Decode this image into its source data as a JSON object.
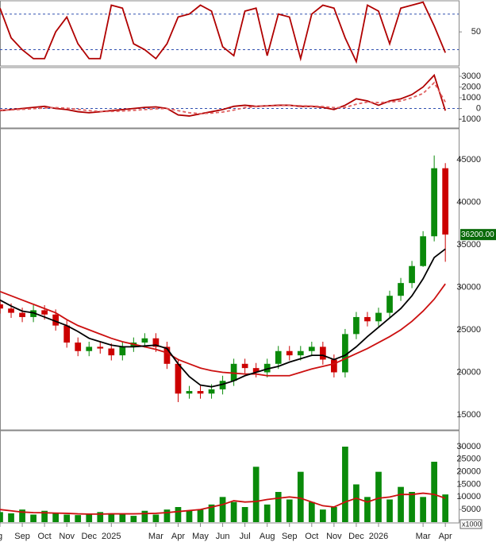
{
  "chart_data": [
    {
      "type": "line",
      "x": [
        0,
        0.5,
        1,
        1.5,
        2,
        2.5,
        3,
        3.5,
        4,
        4.5,
        5,
        5.5,
        6,
        6.5,
        7,
        7.5,
        8,
        8.5,
        9,
        9.5,
        10,
        10.5,
        11,
        11.5,
        12,
        12.5,
        13,
        13.5,
        14,
        14.5,
        15,
        15.5,
        16,
        16.5,
        17,
        17.5,
        18,
        18.5,
        19,
        19.5,
        20
      ],
      "series": [
        {
          "color": "#b00000",
          "style": "solid",
          "values": [
            90,
            40,
            20,
            5,
            5,
            50,
            75,
            30,
            5,
            5,
            95,
            90,
            30,
            20,
            5,
            30,
            75,
            80,
            95,
            85,
            25,
            10,
            85,
            90,
            10,
            80,
            75,
            5,
            80,
            95,
            90,
            40,
            0,
            95,
            85,
            30,
            90,
            95,
            100,
            60,
            15
          ]
        }
      ],
      "levels": [
        80,
        20
      ],
      "ylim": [
        -6,
        101
      ],
      "yticks": [
        50
      ],
      "xlim": [
        0,
        20.6
      ]
    },
    {
      "type": "line",
      "x": [
        0,
        0.5,
        1,
        1.5,
        2,
        2.5,
        3,
        3.5,
        4,
        4.5,
        5,
        5.5,
        6,
        6.5,
        7,
        7.5,
        8,
        8.5,
        9,
        9.5,
        10,
        10.5,
        11,
        11.5,
        12,
        12.5,
        13,
        13.5,
        14,
        14.5,
        15,
        15.5,
        16,
        16.5,
        17,
        17.5,
        18,
        18.5,
        19,
        19.5,
        20
      ],
      "series": [
        {
          "color": "#b00000",
          "style": "solid",
          "values": [
            -200,
            -100,
            0,
            100,
            200,
            0,
            -100,
            -300,
            -400,
            -300,
            -200,
            -100,
            0,
            100,
            150,
            0,
            -600,
            -700,
            -500,
            -300,
            -100,
            200,
            300,
            200,
            250,
            300,
            300,
            200,
            200,
            100,
            -100,
            300,
            900,
            700,
            300,
            700,
            900,
            1300,
            2000,
            3100,
            -200
          ]
        },
        {
          "color": "#e06060",
          "style": "dashed",
          "values": [
            -150,
            -130,
            -80,
            -20,
            50,
            80,
            30,
            -80,
            -200,
            -280,
            -280,
            -240,
            -170,
            -100,
            -30,
            0,
            -200,
            -400,
            -480,
            -430,
            -330,
            -150,
            80,
            180,
            220,
            260,
            280,
            260,
            230,
            180,
            80,
            100,
            400,
            600,
            550,
            600,
            700,
            1000,
            1400,
            2400,
            600
          ]
        }
      ],
      "levels": [
        0
      ],
      "ylim": [
        -1740,
        3740
      ],
      "yticks": [
        -1000,
        0,
        1000,
        2000,
        3000
      ],
      "xlim": [
        0,
        20.6
      ]
    },
    {
      "type": "candlestick",
      "x": [
        0,
        0.5,
        1,
        1.5,
        2,
        2.5,
        3,
        3.5,
        4,
        4.5,
        5,
        5.5,
        6,
        6.5,
        7,
        7.5,
        8,
        8.5,
        9,
        9.5,
        10,
        10.5,
        11,
        11.5,
        12,
        12.5,
        13,
        13.5,
        14,
        14.5,
        15,
        15.5,
        16,
        16.5,
        17,
        17.5,
        18,
        18.5,
        19,
        19.5,
        20
      ],
      "open": [
        28000,
        27500,
        27000,
        26500,
        27300,
        26800,
        25500,
        23500,
        22500,
        23000,
        22800,
        22000,
        23000,
        23500,
        24000,
        23000,
        21000,
        17500,
        17800,
        17500,
        18000,
        19000,
        21000,
        20500,
        20000,
        21000,
        22500,
        22000,
        22500,
        23000,
        21500,
        20000,
        24500,
        26500,
        26000,
        27000,
        29000,
        30500,
        32500,
        36000,
        44000
      ],
      "high": [
        28600,
        28100,
        27600,
        27900,
        27900,
        27400,
        26100,
        24100,
        23600,
        23600,
        23400,
        23600,
        24100,
        24600,
        24600,
        23600,
        21600,
        18400,
        18400,
        18600,
        19600,
        21600,
        21600,
        21100,
        21600,
        23100,
        23100,
        23100,
        23600,
        23600,
        22100,
        25100,
        27100,
        27100,
        27600,
        29600,
        31100,
        33100,
        36600,
        45500,
        44600
      ],
      "low": [
        26900,
        26400,
        25900,
        25900,
        26200,
        24900,
        22900,
        21900,
        21900,
        22200,
        21400,
        21400,
        22400,
        22900,
        22400,
        20400,
        16500,
        16900,
        16900,
        16900,
        17400,
        18400,
        19900,
        19400,
        19400,
        20400,
        21400,
        21400,
        21900,
        20900,
        19400,
        19400,
        23900,
        25400,
        25400,
        26400,
        28400,
        29900,
        32400,
        35400,
        33000
      ],
      "close": [
        27500,
        27000,
        26500,
        27300,
        26800,
        25500,
        23500,
        22500,
        23000,
        22800,
        22000,
        23000,
        23500,
        24000,
        23000,
        21000,
        17500,
        17800,
        17500,
        18000,
        19000,
        21000,
        20500,
        20000,
        21000,
        22500,
        22000,
        22500,
        23000,
        21500,
        20000,
        24500,
        26500,
        26000,
        27000,
        29000,
        30500,
        32500,
        36000,
        44000,
        36200
      ],
      "up_color": "#0a8a0a",
      "down_color": "#cc0000",
      "series": [
        {
          "color": "#cc1010",
          "style": "solid",
          "values": [
            29500,
            29000,
            28500,
            28000,
            27500,
            27000,
            26200,
            25500,
            25000,
            24500,
            24000,
            23600,
            23300,
            23000,
            22700,
            22300,
            21500,
            21000,
            20500,
            20200,
            20000,
            19900,
            19800,
            19800,
            19600,
            19600,
            19600,
            20000,
            20400,
            20700,
            21000,
            21600,
            22200,
            22800,
            23500,
            24200,
            25000,
            26000,
            27200,
            28600,
            30400
          ]
        },
        {
          "color": "#000000",
          "style": "solid",
          "values": [
            28500,
            27800,
            27200,
            27000,
            26500,
            26000,
            25500,
            24800,
            24000,
            23600,
            23200,
            23000,
            23000,
            23100,
            23200,
            22800,
            21000,
            19500,
            18500,
            18300,
            18600,
            19000,
            19600,
            20000,
            20400,
            20700,
            21200,
            21600,
            22000,
            22000,
            21500,
            22000,
            23000,
            24200,
            25300,
            26400,
            27500,
            29000,
            31000,
            33500,
            34500
          ]
        }
      ],
      "last_label": "36200.00",
      "ylim": [
        13318,
        48550
      ],
      "yticks": [
        15000,
        20000,
        25000,
        30000,
        35000,
        40000,
        45000
      ],
      "xlim": [
        0,
        20.6
      ]
    },
    {
      "type": "bar",
      "x": [
        0,
        0.5,
        1,
        1.5,
        2,
        2.5,
        3,
        3.5,
        4,
        4.5,
        5,
        5.5,
        6,
        6.5,
        7,
        7.5,
        8,
        8.5,
        9,
        9.5,
        10,
        10.5,
        11,
        11.5,
        12,
        12.5,
        13,
        13.5,
        14,
        14.5,
        15,
        15.5,
        16,
        16.5,
        17,
        17.5,
        18,
        18.5,
        19,
        19.5,
        20
      ],
      "values": [
        4000,
        3500,
        5000,
        3000,
        4500,
        3500,
        3000,
        2800,
        3000,
        4000,
        3500,
        3000,
        2500,
        4500,
        3000,
        5000,
        6000,
        4500,
        5000,
        7000,
        10000,
        8000,
        6000,
        22000,
        7000,
        12000,
        9000,
        20000,
        8000,
        5000,
        6000,
        30000,
        15000,
        10000,
        20000,
        9000,
        14000,
        12000,
        10000,
        24000,
        11000
      ],
      "color": "#0a8a0a",
      "series": [
        {
          "color": "#cc1010",
          "style": "solid",
          "values": [
            5000,
            4500,
            4000,
            3800,
            3700,
            3600,
            3500,
            3300,
            3200,
            3200,
            3300,
            3300,
            3300,
            3400,
            3500,
            3800,
            4200,
            4600,
            5000,
            6000,
            7000,
            8500,
            8000,
            8200,
            9000,
            9500,
            10000,
            9500,
            8000,
            6500,
            6000,
            8000,
            9500,
            8000,
            9500,
            10000,
            11000,
            11000,
            11500,
            11000,
            9500
          ]
        }
      ],
      "unit": "x1000",
      "ylim": [
        0,
        36000
      ],
      "yticks": [
        5000,
        10000,
        15000,
        20000,
        25000,
        30000
      ],
      "xlim": [
        0,
        20.6
      ],
      "xticks": [
        {
          "value": 0,
          "label": "g"
        },
        {
          "value": 1,
          "label": "Sep"
        },
        {
          "value": 2,
          "label": "Oct"
        },
        {
          "value": 3,
          "label": "Nov"
        },
        {
          "value": 4,
          "label": "Dec"
        },
        {
          "value": 5,
          "label": "2025"
        },
        {
          "value": 7,
          "label": "Mar"
        },
        {
          "value": 8,
          "label": "Apr"
        },
        {
          "value": 9,
          "label": "May"
        },
        {
          "value": 10,
          "label": "Jun"
        },
        {
          "value": 11,
          "label": "Jul"
        },
        {
          "value": 12,
          "label": "Aug"
        },
        {
          "value": 13,
          "label": "Sep"
        },
        {
          "value": 14,
          "label": "Oct"
        },
        {
          "value": 15,
          "label": "Nov"
        },
        {
          "value": 16,
          "label": "Dec"
        },
        {
          "value": 17,
          "label": "2026"
        },
        {
          "value": 19,
          "label": "Mar"
        },
        {
          "value": 20,
          "label": "Apr"
        }
      ]
    }
  ]
}
